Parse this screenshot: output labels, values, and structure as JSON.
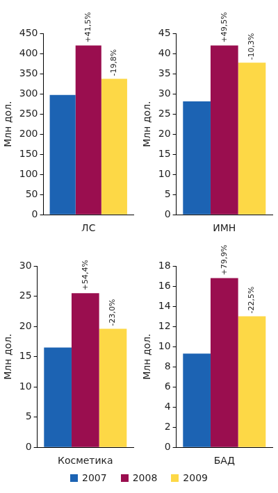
{
  "chart_data": [
    {
      "type": "bar",
      "y_label": "Млн дол.",
      "categories": [
        "ЛС"
      ],
      "series": [
        {
          "name": "2007",
          "color": "#1c63b3",
          "values": [
            297
          ]
        },
        {
          "name": "2008",
          "color": "#9a0e4f",
          "values": [
            420
          ]
        },
        {
          "name": "2009",
          "color": "#fdd846",
          "values": [
            337
          ]
        }
      ],
      "annotations": [
        {
          "series": "2008",
          "text": "+41,5%"
        },
        {
          "series": "2009",
          "text": "-19,8%"
        }
      ],
      "ylim": [
        0,
        450
      ],
      "yticks": [
        0,
        50,
        100,
        150,
        200,
        250,
        300,
        350,
        400,
        450
      ],
      "grid": false
    },
    {
      "type": "bar",
      "y_label": "Млн дол.",
      "categories": [
        "ИМН"
      ],
      "series": [
        {
          "name": "2007",
          "color": "#1c63b3",
          "values": [
            28.1
          ]
        },
        {
          "name": "2008",
          "color": "#9a0e4f",
          "values": [
            42.0
          ]
        },
        {
          "name": "2009",
          "color": "#fdd846",
          "values": [
            37.7
          ]
        }
      ],
      "annotations": [
        {
          "series": "2008",
          "text": "+49,5%"
        },
        {
          "series": "2009",
          "text": "-10,3%"
        }
      ],
      "ylim": [
        0,
        45
      ],
      "yticks": [
        0,
        5,
        10,
        15,
        20,
        25,
        30,
        35,
        40,
        45
      ],
      "grid": false
    },
    {
      "type": "bar",
      "y_label": "Млн дол.",
      "categories": [
        "Косметика"
      ],
      "series": [
        {
          "name": "2007",
          "color": "#1c63b3",
          "values": [
            16.5
          ]
        },
        {
          "name": "2008",
          "color": "#9a0e4f",
          "values": [
            25.5
          ]
        },
        {
          "name": "2009",
          "color": "#fdd846",
          "values": [
            19.6
          ]
        }
      ],
      "annotations": [
        {
          "series": "2008",
          "text": "+54,4%"
        },
        {
          "series": "2009",
          "text": "-23,0%"
        }
      ],
      "ylim": [
        0,
        30
      ],
      "yticks": [
        0,
        5,
        10,
        15,
        20,
        25,
        30
      ],
      "grid": false
    },
    {
      "type": "bar",
      "y_label": "Млн дол.",
      "categories": [
        "БАД"
      ],
      "series": [
        {
          "name": "2007",
          "color": "#1c63b3",
          "values": [
            9.3
          ]
        },
        {
          "name": "2008",
          "color": "#9a0e4f",
          "values": [
            16.8
          ]
        },
        {
          "name": "2009",
          "color": "#fdd846",
          "values": [
            13.0
          ]
        }
      ],
      "annotations": [
        {
          "series": "2008",
          "text": "+79,9%"
        },
        {
          "series": "2009",
          "text": "-22,5%"
        }
      ],
      "ylim": [
        0,
        18
      ],
      "yticks": [
        0,
        2,
        4,
        6,
        8,
        10,
        12,
        14,
        16,
        18
      ],
      "grid": false
    }
  ]
}
